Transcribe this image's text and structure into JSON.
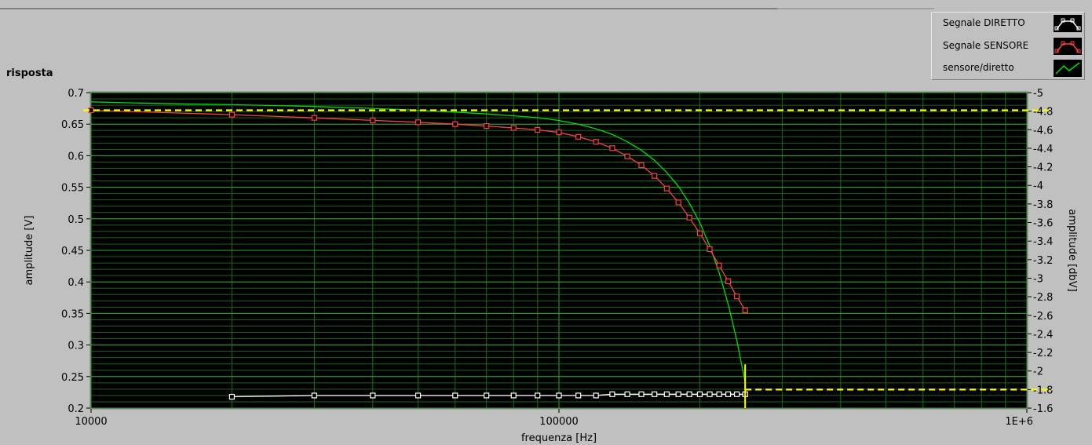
{
  "title": "risposta",
  "legend": [
    {
      "label": "Segnale DIRETTO",
      "color": "#ffffff",
      "marker": "square"
    },
    {
      "label": "Segnale SENSORE",
      "color": "#ff4040",
      "marker": "square"
    },
    {
      "label": "sensore/diretto",
      "color": "#00dd00",
      "marker": "none"
    }
  ],
  "chart_data": {
    "type": "line",
    "xlabel": "frequenza [Hz]",
    "ylabel": "amplitude [V]",
    "y2label": "amplitude [dbV]",
    "xscale": "log",
    "xlim": [
      10000,
      1000000
    ],
    "ylim": [
      0.2,
      0.7
    ],
    "y2lim": [
      -1.6,
      -5
    ],
    "x_ticks": [
      "10000",
      "100000",
      "1E+6"
    ],
    "y_ticks": [
      "0.7",
      "0.65",
      "0.6",
      "0.55",
      "0.5",
      "0.45",
      "0.4",
      "0.35",
      "0.3",
      "0.25",
      "0.2"
    ],
    "y2_ticks": [
      "-5",
      "-4.8",
      "-4.6",
      "-4.4",
      "-4.2",
      "-4",
      "-3.8",
      "-3.6",
      "-3.4",
      "-3.2",
      "-3",
      "-2.8",
      "-2.6",
      "-2.4",
      "-2.2",
      "-2",
      "-1.8",
      "-1.6"
    ],
    "grid": true,
    "legend_position": "top-right",
    "series": [
      {
        "name": "Segnale DIRETTO",
        "axis": "left",
        "x": [
          20000,
          30000,
          40000,
          50000,
          60000,
          70000,
          80000,
          90000,
          100000,
          110000,
          120000,
          130000,
          140000,
          150000,
          160000,
          170000,
          180000,
          190000,
          200000,
          210000,
          220000,
          230000,
          240000,
          250000
        ],
        "y": [
          0.218,
          0.22,
          0.22,
          0.22,
          0.22,
          0.22,
          0.22,
          0.22,
          0.22,
          0.22,
          0.22,
          0.222,
          0.222,
          0.222,
          0.222,
          0.222,
          0.222,
          0.222,
          0.222,
          0.222,
          0.222,
          0.222,
          0.222,
          0.222
        ]
      },
      {
        "name": "Segnale SENSORE",
        "axis": "left",
        "x": [
          10000,
          20000,
          30000,
          40000,
          50000,
          60000,
          70000,
          80000,
          90000,
          100000,
          110000,
          120000,
          130000,
          140000,
          150000,
          160000,
          170000,
          180000,
          190000,
          200000,
          210000,
          220000,
          230000,
          240000,
          250000
        ],
        "y": [
          0.672,
          0.665,
          0.66,
          0.656,
          0.653,
          0.65,
          0.647,
          0.644,
          0.641,
          0.637,
          0.63,
          0.622,
          0.612,
          0.599,
          0.585,
          0.568,
          0.548,
          0.526,
          0.502,
          0.477,
          0.452,
          0.426,
          0.401,
          0.377,
          0.355
        ]
      },
      {
        "name": "sensore/diretto",
        "axis": "right",
        "x": [
          10000,
          12000,
          15000,
          20000,
          25000,
          30000,
          40000,
          50000,
          60000,
          70000,
          80000,
          90000,
          100000,
          110000,
          120000,
          130000,
          140000,
          150000,
          160000,
          170000,
          180000,
          190000,
          200000,
          210000,
          220000,
          230000,
          240000,
          250000
        ],
        "y": [
          -4.9,
          -4.89,
          -4.88,
          -4.87,
          -4.86,
          -4.85,
          -4.83,
          -4.81,
          -4.79,
          -4.77,
          -4.75,
          -4.73,
          -4.7,
          -4.66,
          -4.61,
          -4.55,
          -4.47,
          -4.38,
          -4.27,
          -4.14,
          -3.99,
          -3.81,
          -3.6,
          -3.35,
          -3.06,
          -2.72,
          -2.33,
          -1.88
        ]
      }
    ],
    "cursors": [
      {
        "axis": "left",
        "y": 0.672
      },
      {
        "axis": "right",
        "y": -1.8,
        "x": 250000
      }
    ]
  }
}
